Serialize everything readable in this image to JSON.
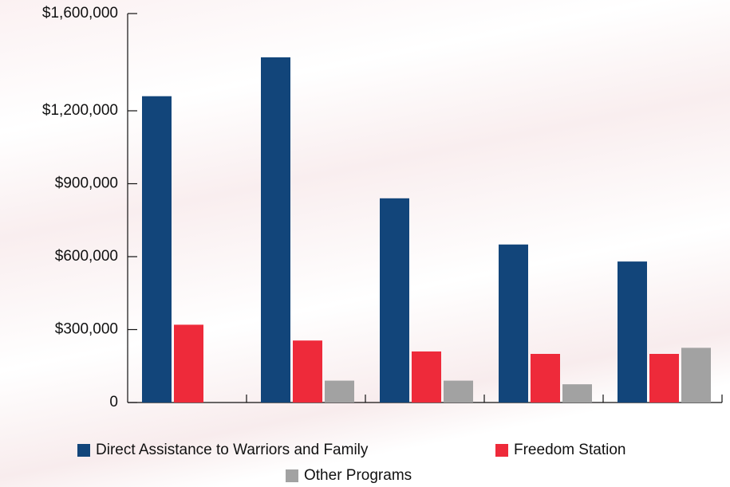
{
  "chart_data": {
    "type": "bar",
    "categories": [
      null,
      null,
      null,
      null,
      null
    ],
    "series": [
      {
        "name": "Direct Assistance to Warriors and Family",
        "color": "#12457a",
        "values": [
          1260000,
          1420000,
          840000,
          650000,
          580000
        ]
      },
      {
        "name": "Freedom Station",
        "color": "#ee2a3a",
        "values": [
          320000,
          255000,
          210000,
          200000,
          200000
        ]
      },
      {
        "name": "Other Programs",
        "color": "#a2a2a2",
        "values": [
          null,
          90000,
          90000,
          75000,
          225000
        ]
      }
    ],
    "ylim": [
      0,
      1600000
    ],
    "yticks": [
      {
        "value": 0,
        "label": "0"
      },
      {
        "value": 300000,
        "label": "$300,000"
      },
      {
        "value": 600000,
        "label": "$600,000"
      },
      {
        "value": 900000,
        "label": "$900,000"
      },
      {
        "value": 1200000,
        "label": "$1,200,000"
      },
      {
        "value": 1600000,
        "label": "$1,600,000"
      }
    ],
    "grid": false,
    "legend": "bottom"
  }
}
